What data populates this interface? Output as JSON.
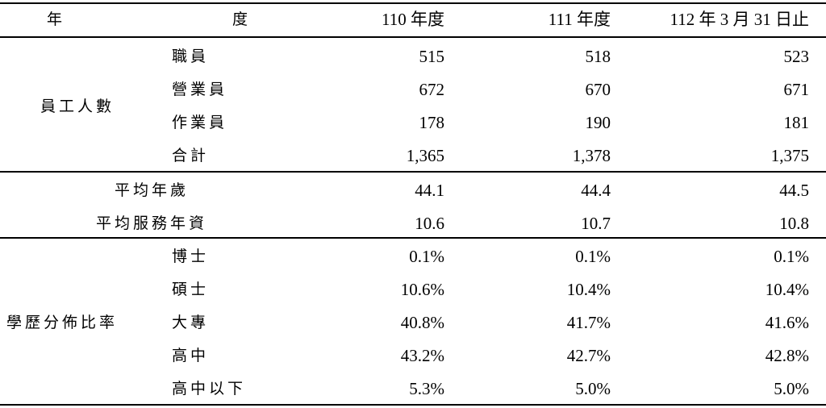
{
  "header": [
    "年",
    "度",
    "110 年度",
    "111 年度",
    "112 年 3 月 31 日止"
  ],
  "sections": [
    {
      "label": "員工人數",
      "rows": [
        {
          "label": "職員",
          "values": [
            "515",
            "518",
            "523"
          ]
        },
        {
          "label": "營業員",
          "values": [
            "672",
            "670",
            "671"
          ]
        },
        {
          "label": "作業員",
          "values": [
            "178",
            "190",
            "181"
          ]
        },
        {
          "label": "合計",
          "values": [
            "1,365",
            "1,378",
            "1,375"
          ]
        }
      ]
    },
    {
      "rows": [
        {
          "label": "平均年歲",
          "values": [
            "44.1",
            "44.4",
            "44.5"
          ]
        },
        {
          "label": "平均服務年資",
          "values": [
            "10.6",
            "10.7",
            "10.8"
          ]
        }
      ]
    },
    {
      "label": "學歷分佈比率",
      "rows": [
        {
          "label": "博士",
          "values": [
            "0.1%",
            "0.1%",
            "0.1%"
          ]
        },
        {
          "label": "碩士",
          "values": [
            "10.6%",
            "10.4%",
            "10.4%"
          ]
        },
        {
          "label": "大專",
          "values": [
            "40.8%",
            "41.7%",
            "41.6%"
          ]
        },
        {
          "label": "高中",
          "values": [
            "43.2%",
            "42.7%",
            "42.8%"
          ]
        },
        {
          "label": "高中以下",
          "values": [
            "5.3%",
            "5.0%",
            "5.0%"
          ]
        }
      ]
    }
  ]
}
